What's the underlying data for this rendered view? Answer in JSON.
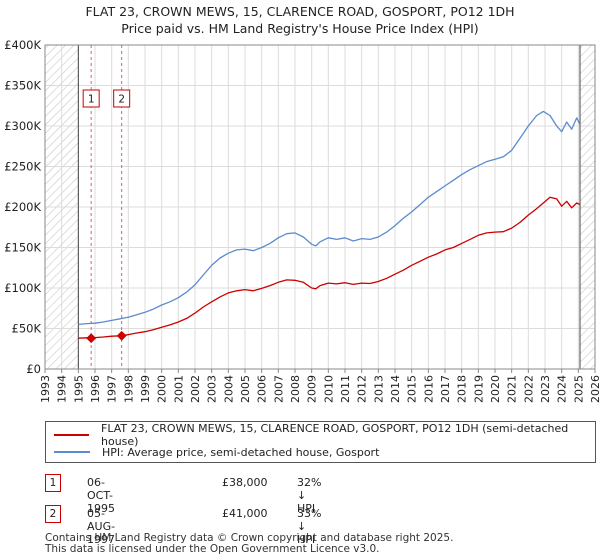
{
  "title_line1": "FLAT 23, CROWN MEWS, 15, CLARENCE ROAD, GOSPORT, PO12 1DH",
  "title_line2": "Price paid vs. HM Land Registry's House Price Index (HPI)",
  "chart_data": {
    "type": "line",
    "title": "FLAT 23, CROWN MEWS, 15, CLARENCE ROAD, GOSPORT, PO12 1DH — Price paid vs. HM Land Registry's House Price Index (HPI)",
    "xlabel": "",
    "ylabel": "",
    "xlim": [
      1993,
      2026
    ],
    "ylim": [
      0,
      400000
    ],
    "x_ticks": [
      "1993",
      "1994",
      "1995",
      "1996",
      "1997",
      "1998",
      "1999",
      "2000",
      "2001",
      "2002",
      "2003",
      "2004",
      "2005",
      "2006",
      "2007",
      "2008",
      "2009",
      "2010",
      "2011",
      "2012",
      "2013",
      "2014",
      "2015",
      "2016",
      "2017",
      "2018",
      "2019",
      "2020",
      "2021",
      "2022",
      "2023",
      "2024",
      "2025",
      "2026"
    ],
    "y_ticks": [
      {
        "value": 0,
        "label": "£0"
      },
      {
        "value": 50000,
        "label": "£50K"
      },
      {
        "value": 100000,
        "label": "£100K"
      },
      {
        "value": 150000,
        "label": "£150K"
      },
      {
        "value": 200000,
        "label": "£200K"
      },
      {
        "value": 250000,
        "label": "£250K"
      },
      {
        "value": 300000,
        "label": "£300K"
      },
      {
        "value": 350000,
        "label": "£350K"
      },
      {
        "value": 400000,
        "label": "£400K"
      }
    ],
    "grid": true,
    "hatched_ranges": [
      [
        1993,
        1995.0
      ],
      [
        2025.1,
        2026
      ]
    ],
    "series": [
      {
        "name": "FLAT 23, CROWN MEWS, 15, CLARENCE ROAD, GOSPORT, PO12 1DH (semi-detached house)",
        "color": "#cc0000",
        "x": [
          1995.0,
          1995.5,
          1995.77,
          1996.0,
          1996.5,
          1997.0,
          1997.6,
          1998.0,
          1998.5,
          1999.0,
          1999.5,
          2000.0,
          2000.5,
          2001.0,
          2001.5,
          2002.0,
          2002.5,
          2003.0,
          2003.5,
          2004.0,
          2004.5,
          2005.0,
          2005.5,
          2006.0,
          2006.5,
          2007.0,
          2007.5,
          2008.0,
          2008.5,
          2009.0,
          2009.25,
          2009.5,
          2010.0,
          2010.5,
          2011.0,
          2011.5,
          2012.0,
          2012.5,
          2013.0,
          2013.5,
          2014.0,
          2014.5,
          2015.0,
          2015.5,
          2016.0,
          2016.5,
          2017.0,
          2017.5,
          2018.0,
          2018.5,
          2019.0,
          2019.5,
          2020.0,
          2020.5,
          2021.0,
          2021.5,
          2022.0,
          2022.5,
          2022.9,
          2023.3,
          2023.7,
          2024.0,
          2024.3,
          2024.6,
          2024.9,
          2025.1
        ],
        "y": [
          38000,
          38500,
          38000,
          38800,
          39500,
          40500,
          41000,
          42500,
          44500,
          46000,
          48500,
          51500,
          54500,
          58000,
          62500,
          69000,
          76500,
          83000,
          89000,
          94000,
          96500,
          98000,
          96500,
          99500,
          103000,
          107000,
          110000,
          109500,
          107000,
          100000,
          99000,
          103000,
          106000,
          105000,
          106500,
          104500,
          106000,
          105500,
          108000,
          112000,
          117000,
          122000,
          128000,
          133000,
          138000,
          142000,
          147000,
          150000,
          155000,
          160000,
          165000,
          168000,
          169000,
          169500,
          174000,
          181000,
          190000,
          198000,
          205000,
          212000,
          210000,
          201000,
          207000,
          199000,
          205000,
          203000
        ]
      },
      {
        "name": "HPI: Average price, semi-detached house, Gosport",
        "color": "#5b8ccc",
        "x": [
          1995.0,
          1995.5,
          1996.0,
          1996.5,
          1997.0,
          1997.5,
          1998.0,
          1998.5,
          1999.0,
          1999.5,
          2000.0,
          2000.5,
          2001.0,
          2001.5,
          2002.0,
          2002.5,
          2003.0,
          2003.5,
          2004.0,
          2004.5,
          2005.0,
          2005.5,
          2006.0,
          2006.5,
          2007.0,
          2007.5,
          2008.0,
          2008.5,
          2009.0,
          2009.25,
          2009.5,
          2010.0,
          2010.5,
          2011.0,
          2011.5,
          2012.0,
          2012.5,
          2013.0,
          2013.5,
          2014.0,
          2014.5,
          2015.0,
          2015.5,
          2016.0,
          2016.5,
          2017.0,
          2017.5,
          2018.0,
          2018.5,
          2019.0,
          2019.5,
          2020.0,
          2020.5,
          2021.0,
          2021.5,
          2022.0,
          2022.5,
          2022.9,
          2023.3,
          2023.7,
          2024.0,
          2024.3,
          2024.6,
          2024.9,
          2025.1
        ],
        "y": [
          55000,
          56000,
          56500,
          58000,
          60000,
          62000,
          64000,
          67000,
          70000,
          74000,
          79000,
          83000,
          88000,
          95000,
          104000,
          116000,
          128000,
          137000,
          143000,
          147000,
          148000,
          146000,
          150000,
          155000,
          162000,
          167000,
          168000,
          163000,
          154000,
          152000,
          157000,
          162000,
          160000,
          162000,
          158000,
          161000,
          160000,
          163000,
          169000,
          177000,
          186000,
          194000,
          203000,
          212000,
          219000,
          226000,
          233000,
          240000,
          246000,
          251000,
          256000,
          259000,
          262000,
          270000,
          285000,
          300000,
          313000,
          318000,
          313000,
          300000,
          293000,
          305000,
          296000,
          310000,
          302000
        ]
      }
    ],
    "sales": [
      {
        "marker": "1",
        "x": 1995.77,
        "y": 38000,
        "date": "06-OCT-1995",
        "price": "£38,000",
        "hpi_note": "32% ↓ HPI"
      },
      {
        "marker": "2",
        "x": 1997.6,
        "y": 41000,
        "date": "05-AUG-1997",
        "price": "£41,000",
        "hpi_note": "33% ↓ HPI"
      }
    ]
  },
  "legend": {
    "property_label": "FLAT 23, CROWN MEWS, 15, CLARENCE ROAD, GOSPORT, PO12 1DH (semi-detached house)",
    "hpi_label": "HPI: Average price, semi-detached house, Gosport",
    "property_color": "#cc0000",
    "hpi_color": "#5b8ccc"
  },
  "sales_table": [
    {
      "marker": "1",
      "date": "06-OCT-1995",
      "price": "£38,000",
      "hpi": "32% ↓ HPI"
    },
    {
      "marker": "2",
      "date": "05-AUG-1997",
      "price": "£41,000",
      "hpi": "33% ↓ HPI"
    }
  ],
  "footer_line1": "Contains HM Land Registry data © Crown copyright and database right 2025.",
  "footer_line2": "This data is licensed under the Open Government Licence v3.0."
}
